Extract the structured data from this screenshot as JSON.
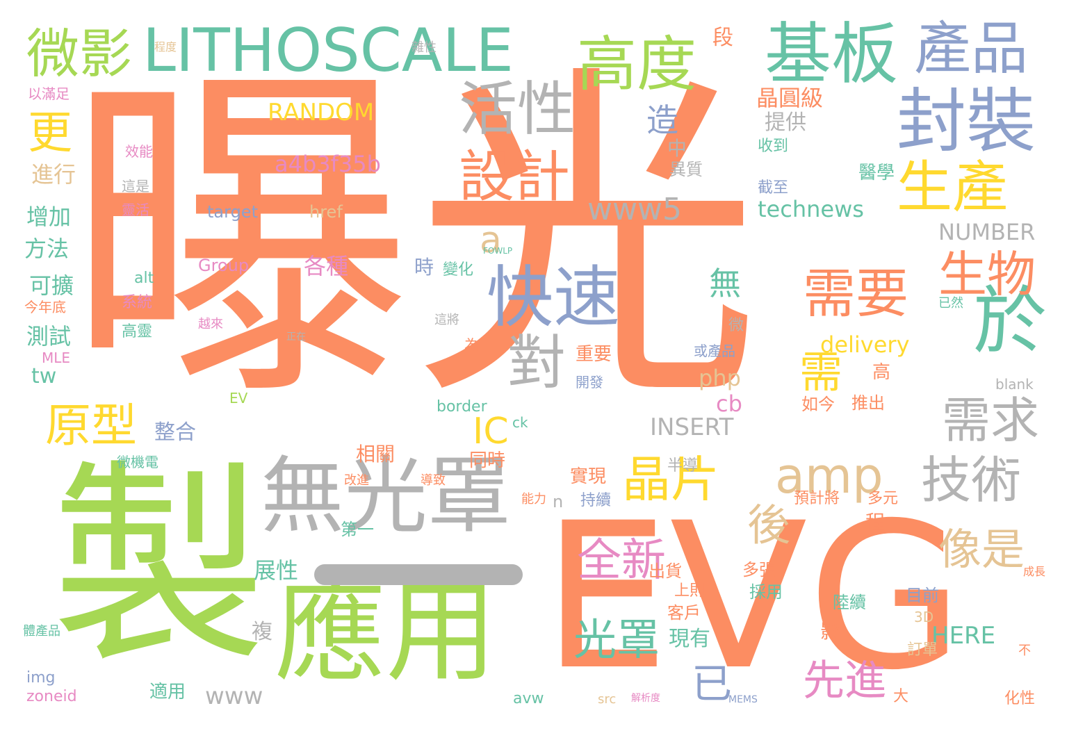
{
  "colors": {
    "orange": "#fc8d62",
    "green": "#a6d854",
    "teal": "#66c2a5",
    "blue": "#8da0cb",
    "pink": "#e78ac3",
    "yellow": "#ffd92f",
    "tan": "#e5c494",
    "gray": "#b3b3b3"
  },
  "words": [
    {
      "text": "曝光"
    },
    {
      "text": "製"
    },
    {
      "text": "EVG"
    },
    {
      "text": "無光罩"
    },
    {
      "text": "應用"
    },
    {
      "text": "LITHOSCALE"
    },
    {
      "text": "基板"
    },
    {
      "text": "高度"
    },
    {
      "text": "產品"
    },
    {
      "text": "封裝"
    },
    {
      "text": "微影"
    },
    {
      "text": "快速"
    },
    {
      "text": "生產"
    },
    {
      "text": "需要"
    },
    {
      "text": "活性"
    },
    {
      "text": "設計"
    },
    {
      "text": "於"
    },
    {
      "text": "生物"
    },
    {
      "text": "晶片"
    },
    {
      "text": "對"
    },
    {
      "text": "技術"
    },
    {
      "text": "需求"
    },
    {
      "text": "原型"
    },
    {
      "text": "更"
    },
    {
      "text": "amp"
    },
    {
      "text": "全新"
    },
    {
      "text": "光罩"
    },
    {
      "text": "像是"
    },
    {
      "text": "後"
    },
    {
      "text": "需"
    },
    {
      "text": "先進"
    },
    {
      "text": "www5"
    },
    {
      "text": "RANDOM"
    },
    {
      "text": "a4b3f35b"
    },
    {
      "text": "technews"
    },
    {
      "text": "delivery"
    },
    {
      "text": "IC"
    },
    {
      "text": "已"
    },
    {
      "text": "無"
    },
    {
      "text": "造"
    },
    {
      "text": "a"
    },
    {
      "text": "NUMBER"
    },
    {
      "text": "INSERT"
    },
    {
      "text": "HERE"
    },
    {
      "text": "php"
    },
    {
      "text": "cb"
    },
    {
      "text": "www"
    },
    {
      "text": "晶圓級"
    },
    {
      "text": "提供"
    },
    {
      "text": "收到"
    },
    {
      "text": "截至"
    },
    {
      "text": "醫學"
    },
    {
      "text": "段"
    },
    {
      "text": "中"
    },
    {
      "text": "異質"
    },
    {
      "text": "進行"
    },
    {
      "text": "增加"
    },
    {
      "text": "方法"
    },
    {
      "text": "可擴"
    },
    {
      "text": "測試"
    },
    {
      "text": "tw"
    },
    {
      "text": "以滿足"
    },
    {
      "text": "target"
    },
    {
      "text": "href"
    },
    {
      "text": "Group"
    },
    {
      "text": "各種"
    },
    {
      "text": "時"
    },
    {
      "text": "變化"
    },
    {
      "text": "alt"
    },
    {
      "text": "系統"
    },
    {
      "text": "高靈"
    },
    {
      "text": "效能"
    },
    {
      "text": "靈活"
    },
    {
      "text": "這是"
    },
    {
      "text": "重要"
    },
    {
      "text": "開發"
    },
    {
      "text": "微"
    },
    {
      "text": "整合"
    },
    {
      "text": "相關"
    },
    {
      "text": "同時"
    },
    {
      "text": "實現"
    },
    {
      "text": "持續"
    },
    {
      "text": "展性"
    },
    {
      "text": "第一"
    },
    {
      "text": "出貨"
    },
    {
      "text": "上則"
    },
    {
      "text": "多張"
    },
    {
      "text": "採用"
    },
    {
      "text": "客戶"
    },
    {
      "text": "現有"
    },
    {
      "text": "陸續"
    },
    {
      "text": "目前"
    },
    {
      "text": "訂單"
    },
    {
      "text": "3D"
    },
    {
      "text": "如今"
    },
    {
      "text": "推出"
    },
    {
      "text": "高"
    },
    {
      "text": "半導"
    },
    {
      "text": "已然"
    },
    {
      "text": "預計將"
    },
    {
      "text": "多元"
    },
    {
      "text": "程"
    },
    {
      "text": "影"
    },
    {
      "text": "或產品"
    },
    {
      "text": "blank"
    },
    {
      "text": "border"
    },
    {
      "text": "EV"
    },
    {
      "text": "n"
    },
    {
      "text": "ck"
    },
    {
      "text": "微機電"
    },
    {
      "text": "適用"
    },
    {
      "text": "avw"
    },
    {
      "text": "src"
    },
    {
      "text": "zoneid"
    },
    {
      "text": "img"
    },
    {
      "text": "化性"
    },
    {
      "text": "體產品"
    },
    {
      "text": "今年底"
    },
    {
      "text": "越來"
    },
    {
      "text": "MLE"
    },
    {
      "text": "能力"
    },
    {
      "text": "改進"
    },
    {
      "text": "導致"
    },
    {
      "text": "為"
    },
    {
      "text": "複"
    },
    {
      "text": "大"
    },
    {
      "text": "不"
    },
    {
      "text": "成長"
    },
    {
      "text": "雜性"
    },
    {
      "text": "程度"
    },
    {
      "text": "MEMS"
    },
    {
      "text": "FOWLP"
    },
    {
      "text": "這將"
    },
    {
      "text": "正在"
    },
    {
      "text": "解析度"
    }
  ]
}
